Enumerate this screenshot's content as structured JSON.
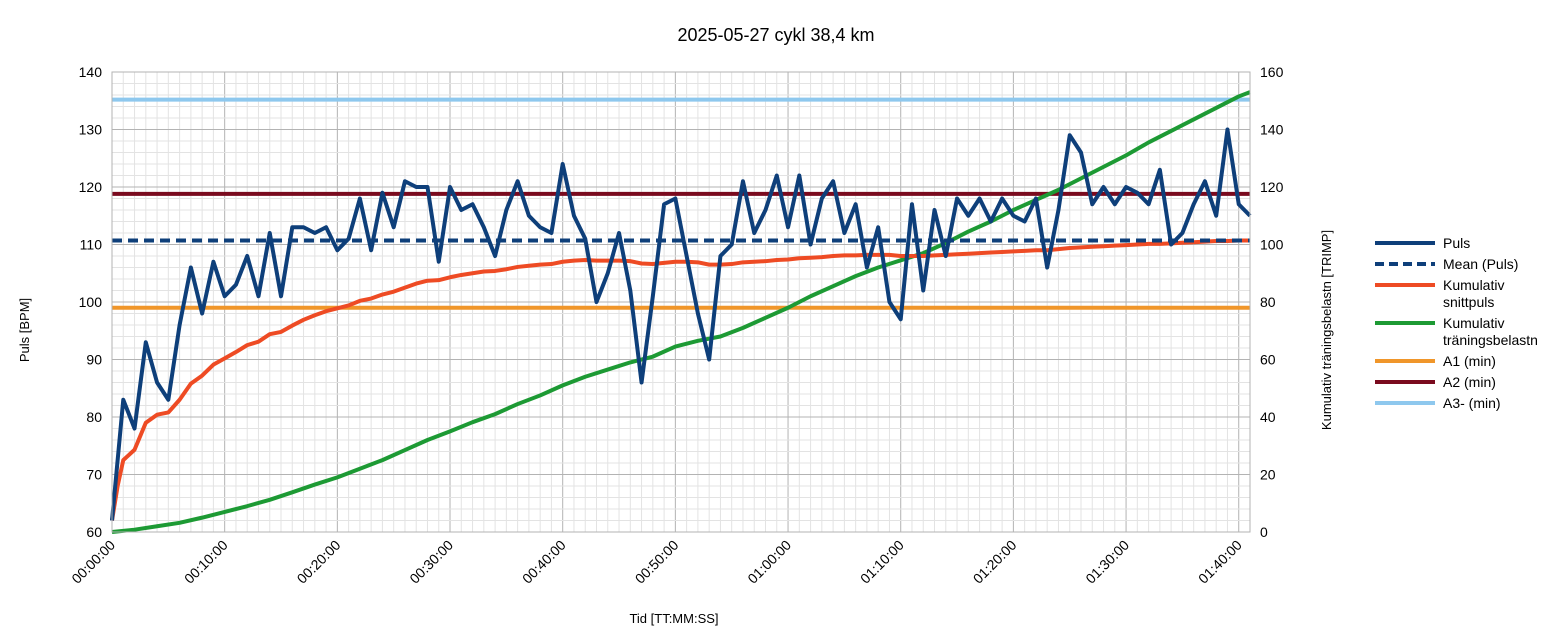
{
  "chart_data": {
    "type": "line",
    "title": "2025-05-27 cykl 38,4 km",
    "xlabel": "Tid [TT:MM:SS]",
    "ylabel": "Puls [BPM]",
    "ylabel_right": "Kumulativ träningsbelastn [TRIMP]",
    "x_unit": "minutes",
    "xlim": [
      0,
      101
    ],
    "ylim": [
      60,
      140
    ],
    "ylim_right": [
      0,
      160
    ],
    "grid": true,
    "legend_position": "right",
    "x_ticks": [
      "00:00:00",
      "00:10:00",
      "00:20:00",
      "00:30:00",
      "00:40:00",
      "00:50:00",
      "01:00:00",
      "01:10:00",
      "01:20:00",
      "01:30:00",
      "01:40:00"
    ],
    "y_ticks": [
      "60",
      "70",
      "80",
      "90",
      "100",
      "110",
      "120",
      "130",
      "140"
    ],
    "y_ticks_right": [
      "0",
      "20",
      "40",
      "60",
      "80",
      "100",
      "120",
      "140",
      "160"
    ],
    "series": [
      {
        "name": "Puls",
        "axis": "left",
        "color": "#0e3f7a",
        "style": "solid",
        "x": [
          0,
          1,
          2,
          3,
          4,
          5,
          6,
          7,
          8,
          9,
          10,
          11,
          12,
          13,
          14,
          15,
          16,
          17,
          18,
          19,
          20,
          21,
          22,
          23,
          24,
          25,
          26,
          27,
          28,
          29,
          30,
          31,
          32,
          33,
          34,
          35,
          36,
          37,
          38,
          39,
          40,
          41,
          42,
          43,
          44,
          45,
          46,
          47,
          48,
          49,
          50,
          51,
          52,
          53,
          54,
          55,
          56,
          57,
          58,
          59,
          60,
          61,
          62,
          63,
          64,
          65,
          66,
          67,
          68,
          69,
          70,
          71,
          72,
          73,
          74,
          75,
          76,
          77,
          78,
          79,
          80,
          81,
          82,
          83,
          84,
          85,
          86,
          87,
          88,
          89,
          90,
          91,
          92,
          93,
          94,
          95,
          96,
          97,
          98,
          99,
          100,
          101
        ],
        "y": [
          62,
          83,
          78,
          93,
          86,
          83,
          96,
          106,
          98,
          107,
          101,
          103,
          108,
          101,
          112,
          101,
          113,
          113,
          112,
          113,
          109,
          111,
          118,
          109,
          119,
          113,
          121,
          120,
          120,
          107,
          120,
          116,
          117,
          113,
          108,
          116,
          121,
          115,
          113,
          112,
          124,
          115,
          111,
          100,
          105,
          112,
          102,
          86,
          101,
          117,
          118,
          108,
          98,
          90,
          108,
          110,
          121,
          112,
          116,
          122,
          113,
          122,
          110,
          118,
          121,
          112,
          117,
          106,
          113,
          100,
          97,
          117,
          102,
          116,
          108,
          118,
          115,
          118,
          114,
          118,
          115,
          114,
          118,
          106,
          116,
          129,
          126,
          117,
          120,
          117,
          120,
          119,
          117,
          123,
          110,
          112,
          117,
          121,
          115,
          130,
          117,
          115
        ]
      },
      {
        "name": "Mean (Puls)",
        "axis": "left",
        "color": "#0e3f7a",
        "style": "dashed",
        "x": [
          0,
          101
        ],
        "y": [
          110.7,
          110.7
        ]
      },
      {
        "name": "Kumulativ snittpuls",
        "axis": "left",
        "color": "#ee4b24",
        "style": "solid",
        "x": [
          0,
          0.5,
          1,
          2,
          3,
          4,
          5,
          6,
          7,
          8,
          9,
          10,
          11,
          12,
          13,
          14,
          15,
          16,
          17,
          18,
          19,
          20,
          21,
          22,
          23,
          24,
          25,
          26,
          27,
          28,
          29,
          30,
          31,
          32,
          33,
          34,
          35,
          36,
          37,
          38,
          39,
          40,
          41,
          42,
          43,
          44,
          45,
          46,
          47,
          48,
          49,
          50,
          51,
          52,
          53,
          54,
          55,
          56,
          57,
          58,
          59,
          60,
          61,
          62,
          63,
          64,
          65,
          66,
          67,
          68,
          69,
          70,
          71,
          72,
          73,
          74,
          75,
          76,
          77,
          78,
          79,
          80,
          81,
          82,
          83,
          84,
          85,
          86,
          87,
          88,
          89,
          90,
          91,
          92,
          93,
          94,
          95,
          96,
          97,
          98,
          99,
          100,
          101
        ],
        "y": [
          62,
          68,
          72.5,
          74.3,
          79,
          80.4,
          80.8,
          83,
          85.8,
          87.2,
          89.1,
          90.2,
          91.3,
          92.5,
          93.1,
          94.4,
          94.8,
          95.9,
          96.9,
          97.7,
          98.4,
          98.9,
          99.4,
          100.2,
          100.6,
          101.3,
          101.8,
          102.5,
          103.2,
          103.7,
          103.8,
          104.3,
          104.7,
          105,
          105.3,
          105.4,
          105.7,
          106.1,
          106.3,
          106.5,
          106.6,
          107,
          107.2,
          107.3,
          107.2,
          107.2,
          107.2,
          107.1,
          106.7,
          106.6,
          106.8,
          107,
          107,
          106.9,
          106.5,
          106.5,
          106.6,
          106.9,
          107,
          107.1,
          107.3,
          107.4,
          107.6,
          107.7,
          107.8,
          108,
          108.1,
          108.1,
          108.2,
          108.2,
          108.2,
          108,
          108,
          108,
          108.1,
          108.2,
          108.3,
          108.4,
          108.5,
          108.6,
          108.7,
          108.8,
          108.9,
          109,
          109,
          109.2,
          109.4,
          109.5,
          109.6,
          109.7,
          109.8,
          109.9,
          110,
          110.1,
          110.1,
          110.2,
          110.3,
          110.4,
          110.5,
          110.6,
          110.6,
          110.7,
          110.7
        ]
      },
      {
        "name": "Kumulativ träningsbelastn",
        "axis": "right",
        "color": "#1d9a34",
        "style": "solid",
        "x": [
          0,
          2,
          4,
          6,
          8,
          10,
          12,
          14,
          16,
          18,
          20,
          22,
          24,
          26,
          28,
          30,
          32,
          34,
          36,
          38,
          40,
          42,
          44,
          46,
          48,
          50,
          52,
          54,
          56,
          58,
          60,
          62,
          64,
          66,
          68,
          70,
          72,
          74,
          76,
          78,
          80,
          82,
          84,
          86,
          88,
          90,
          92,
          94,
          96,
          98,
          100,
          101
        ],
        "y": [
          0,
          0.8,
          2,
          3.2,
          5,
          7,
          9,
          11.2,
          13.8,
          16.5,
          19,
          22,
          25,
          28.5,
          32,
          35,
          38.2,
          41,
          44.5,
          47.5,
          51,
          54,
          56.5,
          59,
          61,
          64.5,
          66.5,
          68,
          71,
          74.5,
          78,
          82,
          85.5,
          89,
          92,
          94.5,
          97,
          100.5,
          104.5,
          108,
          112,
          115.5,
          119,
          123,
          127,
          131,
          135.5,
          139.5,
          143.5,
          147.5,
          151.5,
          153
        ]
      },
      {
        "name": "A1 (min)",
        "axis": "left",
        "color": "#f0962a",
        "style": "solid",
        "x": [
          0,
          101
        ],
        "y": [
          99,
          99
        ]
      },
      {
        "name": "A2 (min)",
        "axis": "left",
        "color": "#7a0a1e",
        "style": "solid",
        "x": [
          0,
          101
        ],
        "y": [
          118.8,
          118.8
        ]
      },
      {
        "name": "A3- (min)",
        "axis": "left",
        "color": "#8ec8ee",
        "style": "solid",
        "x": [
          0,
          101
        ],
        "y": [
          135.2,
          135.2
        ]
      }
    ],
    "legend": [
      {
        "label": "Puls",
        "color": "#0e3f7a",
        "style": "solid"
      },
      {
        "label": "Mean (Puls)",
        "color": "#0e3f7a",
        "style": "dashed"
      },
      {
        "label": "Kumulativ",
        "label2": "snittpuls",
        "color": "#ee4b24",
        "style": "solid"
      },
      {
        "label": "Kumulativ",
        "label2": "träningsbelastn",
        "color": "#1d9a34",
        "style": "solid"
      },
      {
        "label": "A1 (min)",
        "color": "#f0962a",
        "style": "solid"
      },
      {
        "label": "A2 (min)",
        "color": "#7a0a1e",
        "style": "solid"
      },
      {
        "label": "A3- (min)",
        "color": "#8ec8ee",
        "style": "solid"
      }
    ]
  }
}
